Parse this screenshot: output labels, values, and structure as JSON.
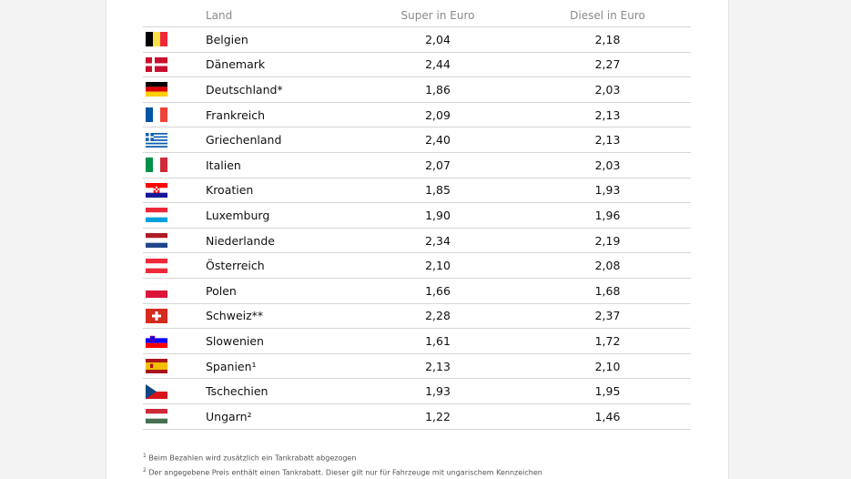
{
  "headers": {
    "land": "Land",
    "super": "Super in Euro",
    "diesel": "Diesel in Euro"
  },
  "rows": [
    {
      "country": "Belgien",
      "super": "2,04",
      "diesel": "2,18",
      "flag": "belgium-flag"
    },
    {
      "country": "Dänemark",
      "super": "2,44",
      "diesel": "2,27",
      "flag": "denmark-flag"
    },
    {
      "country": "Deutschland*",
      "super": "1,86",
      "diesel": "2,03",
      "flag": "germany-flag"
    },
    {
      "country": "Frankreich",
      "super": "2,09",
      "diesel": "2,13",
      "flag": "france-flag"
    },
    {
      "country": "Griechenland",
      "super": "2,40",
      "diesel": "2,13",
      "flag": "greece-flag"
    },
    {
      "country": "Italien",
      "super": "2,07",
      "diesel": "2,03",
      "flag": "italy-flag"
    },
    {
      "country": "Kroatien",
      "super": "1,85",
      "diesel": "1,93",
      "flag": "croatia-flag"
    },
    {
      "country": "Luxemburg",
      "super": "1,90",
      "diesel": "1,96",
      "flag": "luxembourg-flag"
    },
    {
      "country": "Niederlande",
      "super": "2,34",
      "diesel": "2,19",
      "flag": "netherlands-flag"
    },
    {
      "country": "Österreich",
      "super": "2,10",
      "diesel": "2,08",
      "flag": "austria-flag"
    },
    {
      "country": "Polen",
      "super": "1,66",
      "diesel": "1,68",
      "flag": "poland-flag"
    },
    {
      "country": "Schweiz**",
      "super": "2,28",
      "diesel": "2,37",
      "flag": "switzerland-flag"
    },
    {
      "country": "Slowenien",
      "super": "1,61",
      "diesel": "1,72",
      "flag": "slovenia-flag"
    },
    {
      "country": "Spanien¹",
      "super": "2,13",
      "diesel": "2,10",
      "flag": "spain-flag"
    },
    {
      "country": "Tschechien",
      "super": "1,93",
      "diesel": "1,95",
      "flag": "czechia-flag"
    },
    {
      "country": "Ungarn²",
      "super": "1,22",
      "diesel": "1,46",
      "flag": "hungary-flag"
    }
  ],
  "footnotes": [
    {
      "mark": "1",
      "text": "Beim Bezahlen wird zusätzlich ein Tankrabatt abgezogen"
    },
    {
      "mark": "2",
      "text": "Der angegebene Preis enthält einen Tankrabatt. Dieser gilt nur für Fahrzeuge mit ungarischem Kennzeichen"
    }
  ]
}
